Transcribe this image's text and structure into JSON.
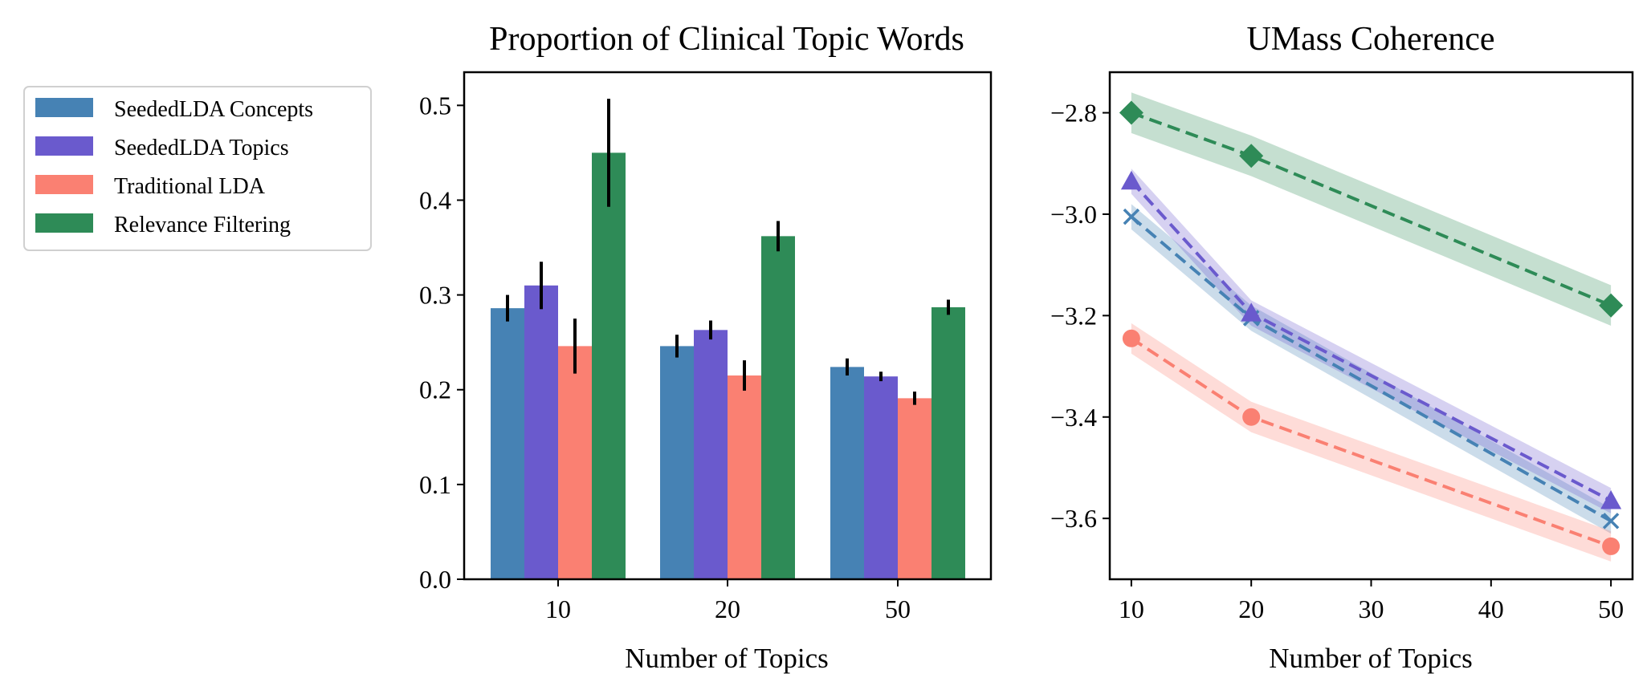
{
  "legend": {
    "items": [
      {
        "label": "SeededLDA Concepts",
        "color": "#4682b4"
      },
      {
        "label": "SeededLDA Topics",
        "color": "#6a5acd"
      },
      {
        "label": "Traditional LDA",
        "color": "#fa8072"
      },
      {
        "label": "Relevance Filtering",
        "color": "#2e8b57"
      }
    ]
  },
  "chart_data": [
    {
      "type": "bar",
      "title": "Proportion of Clinical Topic Words",
      "xlabel": "Number of Topics",
      "ylabel": "",
      "categories": [
        "10",
        "20",
        "50"
      ],
      "ylim": [
        0,
        0.535
      ],
      "yticks": [
        0.0,
        0.1,
        0.2,
        0.3,
        0.4,
        0.5
      ],
      "ytick_labels": [
        "0.0",
        "0.1",
        "0.2",
        "0.3",
        "0.4",
        "0.5"
      ],
      "series": [
        {
          "name": "SeededLDA Concepts",
          "color": "#4682b4",
          "values": [
            0.286,
            0.246,
            0.224
          ],
          "errors": [
            0.014,
            0.012,
            0.009
          ]
        },
        {
          "name": "SeededLDA Topics",
          "color": "#6a5acd",
          "values": [
            0.31,
            0.263,
            0.214
          ],
          "errors": [
            0.025,
            0.01,
            0.005
          ]
        },
        {
          "name": "Traditional LDA",
          "color": "#fa8072",
          "values": [
            0.246,
            0.215,
            0.191
          ],
          "errors": [
            0.029,
            0.016,
            0.007
          ]
        },
        {
          "name": "Relevance Filtering",
          "color": "#2e8b57",
          "values": [
            0.45,
            0.362,
            0.287
          ],
          "errors": [
            0.057,
            0.016,
            0.008
          ]
        }
      ]
    },
    {
      "type": "line",
      "title": "UMass Coherence",
      "xlabel": "Number of Topics",
      "ylabel": "",
      "x": [
        10,
        20,
        50
      ],
      "xlim": [
        8.2,
        51.8
      ],
      "ylim": [
        -3.72,
        -2.72
      ],
      "xticks": [
        10,
        20,
        30,
        40,
        50
      ],
      "yticks": [
        -2.8,
        -3.0,
        -3.2,
        -3.4,
        -3.6
      ],
      "ytick_labels": [
        "−2.8",
        "−3.0",
        "−3.2",
        "−3.4",
        "−3.6"
      ],
      "series": [
        {
          "name": "SeededLDA Concepts",
          "color": "#4682b4",
          "marker": "x",
          "values": [
            -3.005,
            -3.205,
            -3.605
          ],
          "band": 0.025
        },
        {
          "name": "SeededLDA Topics",
          "color": "#6a5acd",
          "marker": "triangle",
          "values": [
            -2.935,
            -3.195,
            -3.565
          ],
          "band": 0.025
        },
        {
          "name": "Traditional LDA",
          "color": "#fa8072",
          "marker": "circle",
          "values": [
            -3.245,
            -3.4,
            -3.655
          ],
          "band": 0.03
        },
        {
          "name": "Relevance Filtering",
          "color": "#2e8b57",
          "marker": "diamond",
          "values": [
            -2.8,
            -2.885,
            -3.18
          ],
          "band": 0.04
        }
      ]
    }
  ]
}
